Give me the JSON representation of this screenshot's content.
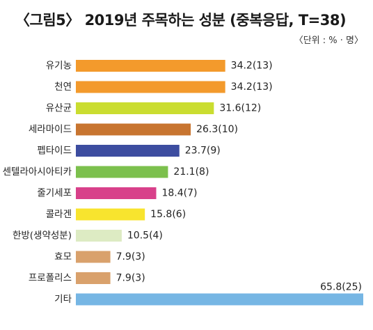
{
  "chart_data": {
    "type": "bar",
    "orientation": "horizontal",
    "title": "〈그림5〉 2019년 주목하는 성분 (중복응답,  T=38)",
    "unit_note": "〈단위 : % · 명〉",
    "xlim": [
      0,
      65.8
    ],
    "grid": false,
    "categories": [
      "유기농",
      "천연",
      "유산균",
      "세라마이드",
      "펩타이드",
      "센텔라아시아티카",
      "줄기세포",
      "콜라겐",
      "한방(생약성분)",
      "효모",
      "프로폴리스",
      "기타"
    ],
    "values": [
      34.2,
      34.2,
      31.6,
      26.3,
      23.7,
      21.1,
      18.4,
      15.8,
      10.5,
      7.9,
      7.9,
      65.8
    ],
    "labels": [
      "34.2(13)",
      "34.2(13)",
      "31.6(12)",
      "26.3(10)",
      "23.7(9)",
      "21.1(8)",
      "18.4(7)",
      "15.8(6)",
      "10.5(4)",
      "7.9(3)",
      "7.9(3)",
      "65.8(25)"
    ],
    "colors": [
      "#F39A2C",
      "#F39A2C",
      "#CADD30",
      "#C87530",
      "#3D4DA0",
      "#7CC04D",
      "#D8408A",
      "#F8E42E",
      "#DDEBC3",
      "#D9A16C",
      "#D9A16C",
      "#76B6E4"
    ]
  }
}
